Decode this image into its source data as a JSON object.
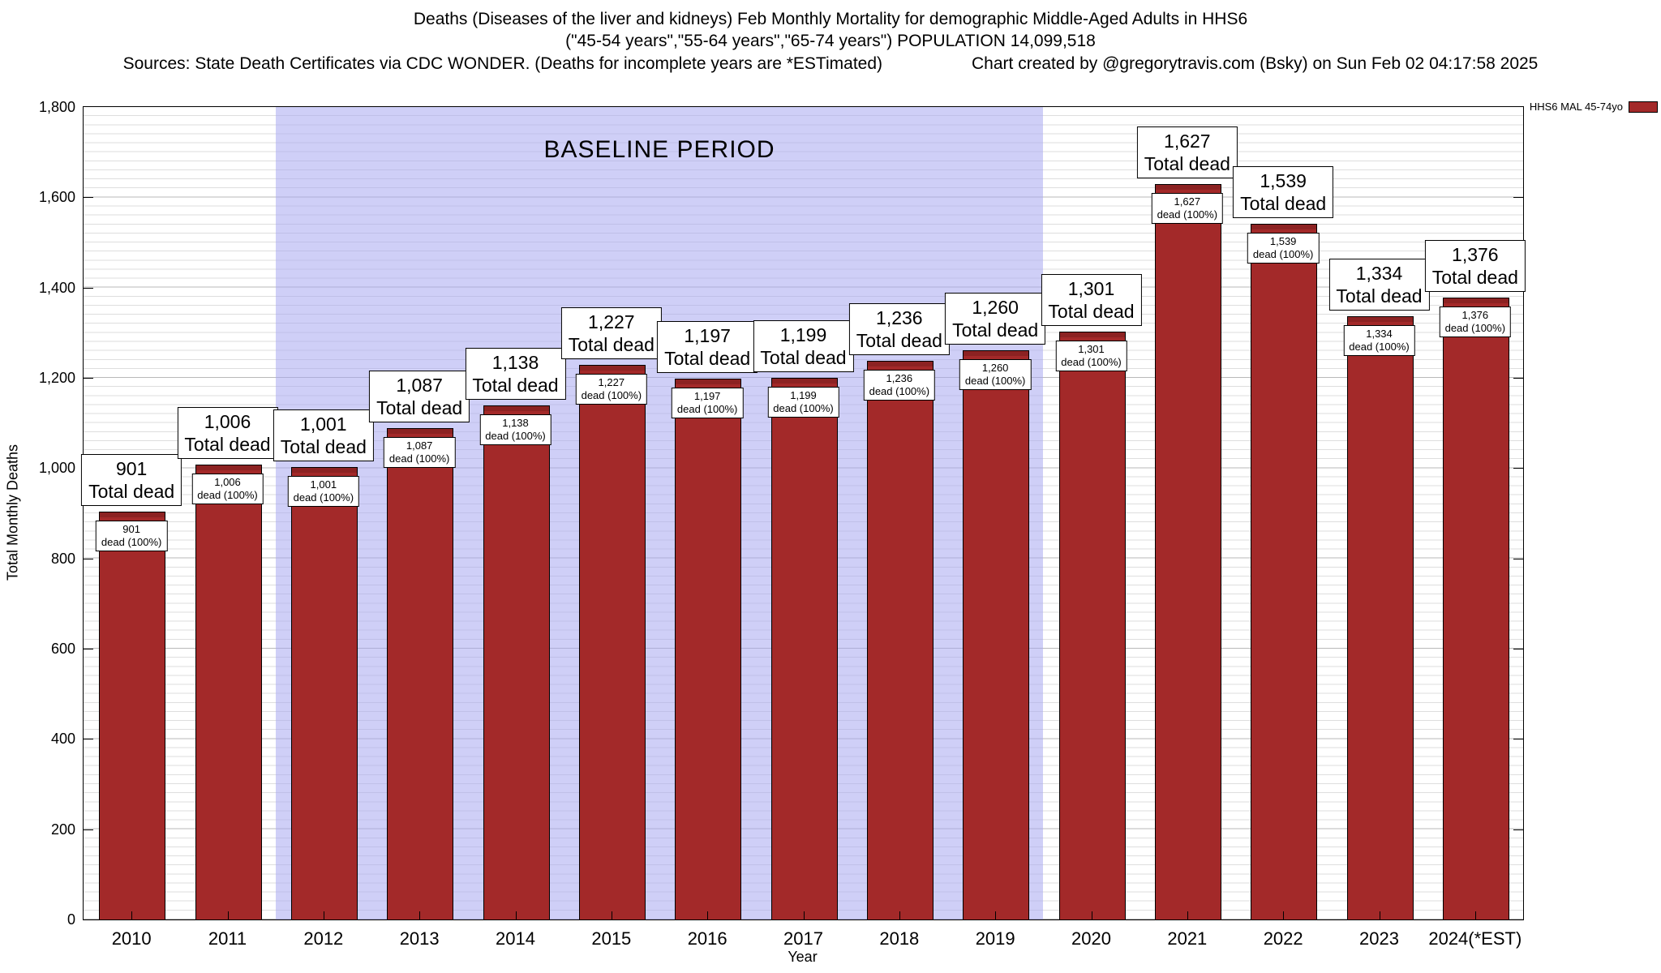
{
  "header": {
    "title_line1": "Deaths (Diseases of the liver and kidneys) Feb Monthly Mortality for demographic Middle-Aged Adults in HHS6",
    "title_line2": "(\"45-54 years\",\"55-64 years\",\"65-74 years\") POPULATION 14,099,518",
    "sources": "Sources: State Death Certificates via CDC WONDER. (Deaths for incomplete years are *ESTimated)",
    "credit": "Chart created by @gregorytravis.com (Bsky) on Sun Feb 02 04:17:58 2025"
  },
  "legend": {
    "label": "HHS6 MAL 45-74yo",
    "swatch_color": "#a32929"
  },
  "chart_data": {
    "type": "bar",
    "title": "Deaths (Diseases of the liver and kidneys) Feb Monthly Mortality for demographic Middle-Aged Adults in HHS6",
    "xlabel": "Year",
    "ylabel": "Total Monthly Deaths",
    "ylim": [
      0,
      1800
    ],
    "ytick_step": 200,
    "grid": true,
    "legend_position": "top-right",
    "categories": [
      "2010",
      "2011",
      "2012",
      "2013",
      "2014",
      "2015",
      "2016",
      "2017",
      "2018",
      "2019",
      "2020",
      "2021",
      "2022",
      "2023",
      "2024(*EST)"
    ],
    "values": [
      901,
      1006,
      1001,
      1087,
      1138,
      1227,
      1197,
      1199,
      1236,
      1260,
      1301,
      1627,
      1539,
      1334,
      1376
    ],
    "bar_color": "#a32929",
    "bar_top_color": "#8c2222",
    "above_label_line2": "Total dead",
    "onbar_label_line2": "dead (100%)",
    "baseline_region": {
      "label": "BASELINE PERIOD",
      "from_index": 2,
      "to_index": 9,
      "from_category": "2012",
      "to_category": "2019",
      "fill": "rgba(168,168,241,0.55)"
    }
  }
}
